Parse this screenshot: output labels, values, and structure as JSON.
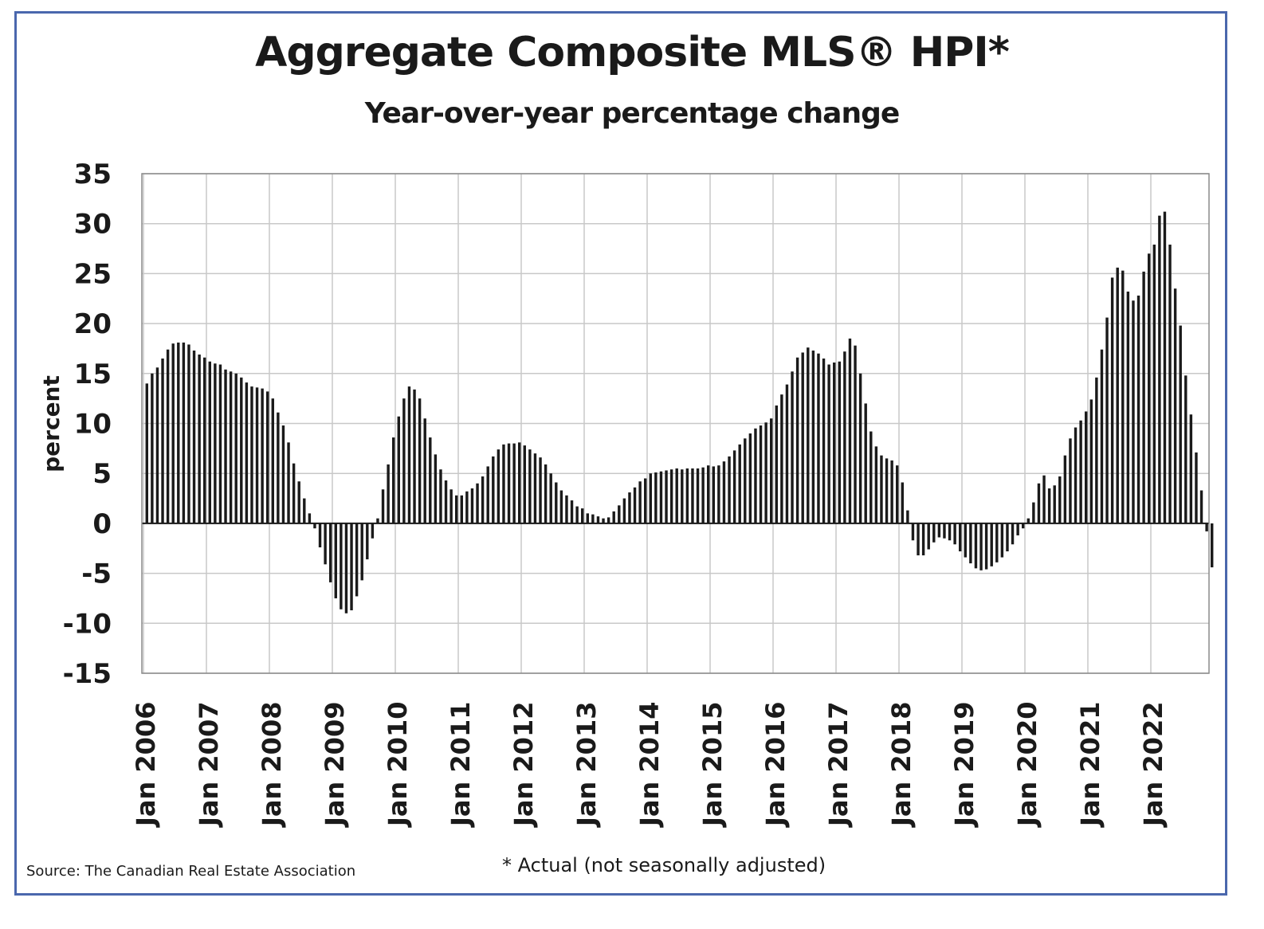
{
  "header": {
    "title": "Aggregate Composite MLS® HPI*",
    "subtitle": "Year-over-year percentage change"
  },
  "footer": {
    "source": "Source: The Canadian Real Estate Association",
    "footnote": "* Actual (not seasonally adjusted)"
  },
  "colors": {
    "frame": "#4a67ad",
    "bar": "#1a1a1a",
    "grid": "#c8c8c8",
    "text": "#1a1a1a"
  },
  "chart_data": {
    "type": "bar",
    "title": "Aggregate Composite MLS® HPI*",
    "subtitle": "Year-over-year percentage change",
    "ylabel": "percent",
    "ylim": [
      -15,
      35
    ],
    "yticks": [
      35,
      30,
      25,
      20,
      15,
      10,
      5,
      0,
      -5,
      -10,
      -15
    ],
    "xticks": [
      "Jan 2006",
      "Jan 2007",
      "Jan 2008",
      "Jan 2009",
      "Jan 2010",
      "Jan 2011",
      "Jan 2012",
      "Jan 2013",
      "Jan 2014",
      "Jan 2015",
      "Jan 2016",
      "Jan 2017",
      "Jan 2018",
      "Jan 2019",
      "Jan 2020",
      "Jan 2021",
      "Jan 2022"
    ],
    "grid": true,
    "start": "Jan 2006",
    "frequency": "monthly",
    "values": [
      14.0,
      15.0,
      15.6,
      16.5,
      17.4,
      18.0,
      18.1,
      18.1,
      17.9,
      17.3,
      16.9,
      16.6,
      16.2,
      16.0,
      15.9,
      15.4,
      15.2,
      15.0,
      14.6,
      14.1,
      13.7,
      13.6,
      13.5,
      13.2,
      12.5,
      11.1,
      9.8,
      8.1,
      6.0,
      4.2,
      2.5,
      1.0,
      -0.5,
      -2.4,
      -4.1,
      -5.9,
      -7.5,
      -8.6,
      -9.0,
      -8.7,
      -7.3,
      -5.7,
      -3.6,
      -1.5,
      0.5,
      3.4,
      5.9,
      8.6,
      10.7,
      12.5,
      13.7,
      13.4,
      12.5,
      10.5,
      8.6,
      6.9,
      5.4,
      4.3,
      3.4,
      2.8,
      2.8,
      3.2,
      3.5,
      4.0,
      4.7,
      5.7,
      6.7,
      7.4,
      7.9,
      8.0,
      8.0,
      8.1,
      7.8,
      7.4,
      7.0,
      6.6,
      5.9,
      5.0,
      4.1,
      3.3,
      2.8,
      2.3,
      1.7,
      1.5,
      1.0,
      0.9,
      0.7,
      0.5,
      0.6,
      1.2,
      1.8,
      2.5,
      3.1,
      3.6,
      4.2,
      4.5,
      5.0,
      5.1,
      5.2,
      5.3,
      5.4,
      5.5,
      5.4,
      5.5,
      5.5,
      5.5,
      5.6,
      5.8,
      5.7,
      5.8,
      6.2,
      6.7,
      7.3,
      7.9,
      8.5,
      9.0,
      9.5,
      9.8,
      10.1,
      10.5,
      11.8,
      12.9,
      13.9,
      15.2,
      16.6,
      17.1,
      17.6,
      17.3,
      17.0,
      16.5,
      15.9,
      16.1,
      16.2,
      17.2,
      18.5,
      17.8,
      15.0,
      12.0,
      9.2,
      7.7,
      6.8,
      6.5,
      6.3,
      5.8,
      4.1,
      1.3,
      -1.7,
      -3.2,
      -3.2,
      -2.6,
      -1.9,
      -1.4,
      -1.5,
      -1.7,
      -2.1,
      -2.8,
      -3.4,
      -4.0,
      -4.5,
      -4.7,
      -4.6,
      -4.3,
      -3.9,
      -3.4,
      -2.8,
      -2.1,
      -1.2,
      -0.5,
      0.5,
      2.1,
      4.0,
      4.8,
      3.5,
      3.8,
      4.7,
      6.8,
      8.5,
      9.6,
      10.3,
      11.2,
      12.4,
      14.6,
      17.4,
      20.6,
      24.6,
      25.6,
      25.3,
      23.2,
      22.3,
      22.8,
      25.2,
      27.0,
      27.9,
      30.8,
      31.2,
      27.9,
      23.5,
      19.8,
      14.8,
      10.9,
      7.1,
      3.3,
      -0.8,
      -4.4
    ]
  }
}
